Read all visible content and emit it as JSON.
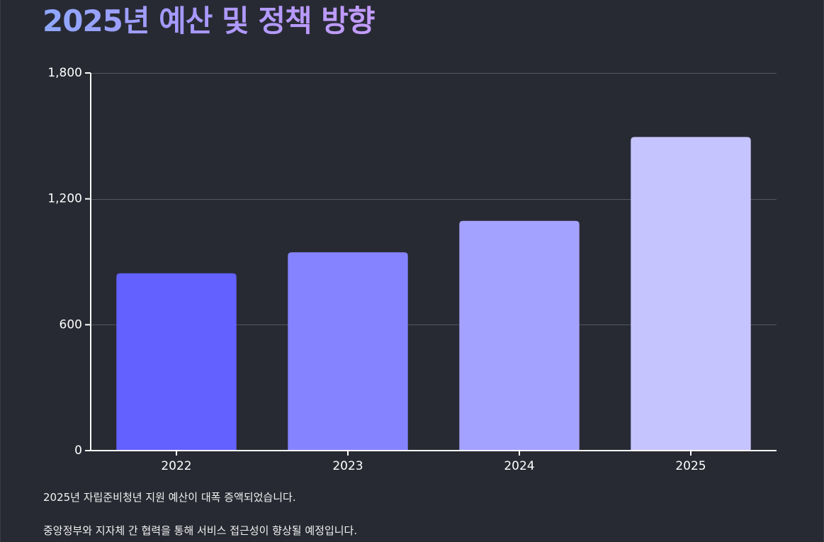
{
  "page": {
    "title": "2025년 예산 및 정책 방향",
    "notes": [
      "2025년 자립준비청년 지원 예산이 대폭 증액되었습니다.",
      "중앙정부와 지자체 간 협력을 통해 서비스 접근성이 향상될 예정입니다."
    ]
  },
  "chart_data": {
    "type": "bar",
    "title": "",
    "xlabel": "",
    "ylabel": "",
    "categories": [
      "2022",
      "2023",
      "2024",
      "2025"
    ],
    "values": [
      845,
      945,
      1095,
      1495
    ],
    "ylim": [
      0,
      1800
    ],
    "yticks": [
      0,
      600,
      1200,
      1800
    ],
    "ytick_labels": [
      "0",
      "600",
      "1,200",
      "1,800"
    ],
    "grid": true,
    "legend": "none",
    "colors": [
      "#6361ff",
      "#8583ff",
      "#a4a2ff",
      "#c6c4ff"
    ],
    "gridline_color": "#55575f",
    "axis_color": "#ffffff"
  }
}
